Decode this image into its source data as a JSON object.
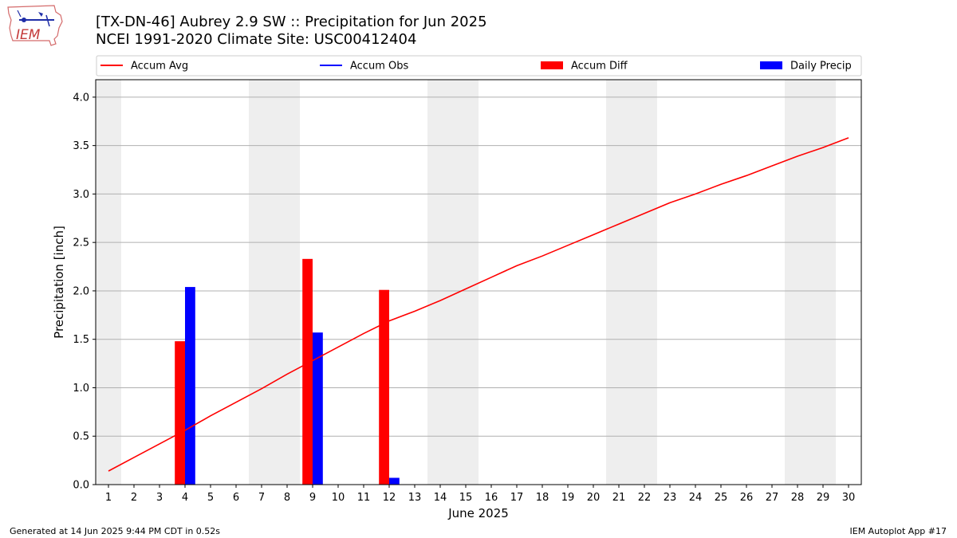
{
  "header": {
    "title_line1": "[TX-DN-46] Aubrey 2.9 SW :: Precipitation for Jun 2025",
    "title_line2": "NCEI 1991-2020 Climate Site: USC00412404",
    "logo_text": "IEM"
  },
  "footer": {
    "generated": "Generated at 14 Jun 2025 9:44 PM CDT in 0.52s",
    "app": "IEM Autoplot App #17"
  },
  "colors": {
    "accum_avg": "#ff0000",
    "accum_obs": "#0000ff",
    "accum_diff": "#ff0000",
    "daily_precip": "#0000ff",
    "weekend_shade": "#eeeeee",
    "grid": "#b0b0b0"
  },
  "chart_data": {
    "type": "bar",
    "xlabel": "June 2025",
    "ylabel": "Precipitation [inch]",
    "xlim": [
      0.5,
      30.5
    ],
    "ylim": [
      0,
      4.18
    ],
    "yticks": [
      0.0,
      0.5,
      1.0,
      1.5,
      2.0,
      2.5,
      3.0,
      3.5,
      4.0
    ],
    "ytick_labels": [
      "0.0",
      "0.5",
      "1.0",
      "1.5",
      "2.0",
      "2.5",
      "3.0",
      "3.5",
      "4.0"
    ],
    "days": [
      1,
      2,
      3,
      4,
      5,
      6,
      7,
      8,
      9,
      10,
      11,
      12,
      13,
      14,
      15,
      16,
      17,
      18,
      19,
      20,
      21,
      22,
      23,
      24,
      25,
      26,
      27,
      28,
      29,
      30
    ],
    "grid": true,
    "legend_placement": "top",
    "legend": [
      {
        "name": "Accum Avg",
        "kind": "line",
        "color": "#ff0000"
      },
      {
        "name": "Accum Obs",
        "kind": "line",
        "color": "#0000ff"
      },
      {
        "name": "Accum Diff",
        "kind": "bar",
        "color": "#ff0000"
      },
      {
        "name": "Daily Precip",
        "kind": "bar",
        "color": "#0000ff"
      }
    ],
    "weekend_spans": [
      [
        0.5,
        1.5
      ],
      [
        6.5,
        8.5
      ],
      [
        13.5,
        15.5
      ],
      [
        20.5,
        22.5
      ],
      [
        27.5,
        29.5
      ]
    ],
    "series": [
      {
        "name": "Accum Avg",
        "kind": "line",
        "color": "#ff0000",
        "x": [
          1,
          2,
          3,
          4,
          5,
          6,
          7,
          8,
          9,
          10,
          11,
          12,
          13,
          14,
          15,
          16,
          17,
          18,
          19,
          20,
          21,
          22,
          23,
          24,
          25,
          26,
          27,
          28,
          29,
          30
        ],
        "values": [
          0.14,
          0.28,
          0.42,
          0.56,
          0.71,
          0.85,
          0.99,
          1.14,
          1.28,
          1.42,
          1.56,
          1.69,
          1.79,
          1.9,
          2.02,
          2.14,
          2.26,
          2.36,
          2.47,
          2.58,
          2.69,
          2.8,
          2.91,
          3.0,
          3.1,
          3.19,
          3.29,
          3.39,
          3.48,
          3.58
        ]
      },
      {
        "name": "Accum Diff",
        "kind": "bar",
        "color": "#ff0000",
        "offset": -0.2,
        "x": [
          4,
          9,
          12
        ],
        "values": [
          1.48,
          2.33,
          2.01
        ]
      },
      {
        "name": "Daily Precip",
        "kind": "bar",
        "color": "#0000ff",
        "offset": 0.2,
        "x": [
          4,
          9,
          12
        ],
        "values": [
          2.04,
          1.57,
          0.07
        ]
      }
    ]
  }
}
